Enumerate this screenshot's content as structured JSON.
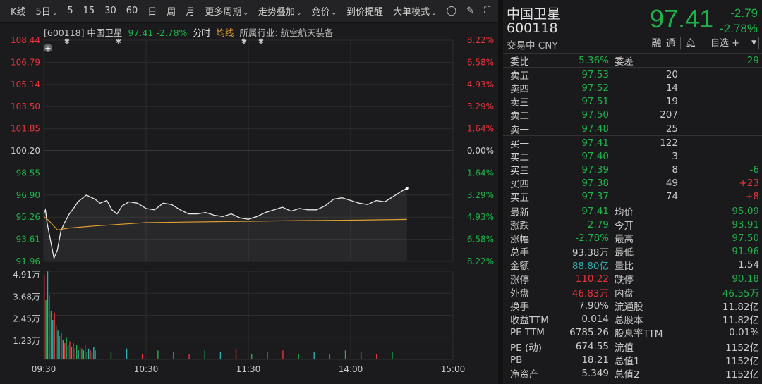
{
  "toolbar": {
    "items": [
      "K线",
      "5日",
      "5",
      "15",
      "30",
      "60",
      "日",
      "周",
      "月",
      "更多周期",
      "走势叠加",
      "竞价",
      "到价提醒",
      "大单模式"
    ],
    "dropdowns": [
      1,
      9,
      10,
      11,
      13
    ],
    "icons": [
      "circle-chevron-down-icon",
      "brush-icon",
      "fullscreen-icon"
    ]
  },
  "info": {
    "code": "[600118]",
    "name": "中国卫星",
    "price": "97.41",
    "pct": "-2.78%",
    "mode": "分时",
    "avg": "均线",
    "industry": "所属行业: 航空航天装备"
  },
  "colors": {
    "up": "#e8323c",
    "down": "#1fb24a",
    "avg": "#e0a030",
    "line": "#e8e8e8",
    "vol_teal": "#2bb0b0"
  },
  "chart_data": {
    "type": "line",
    "price_ticks": [
      "108.44",
      "106.79",
      "105.14",
      "103.50",
      "101.85",
      "100.20",
      "98.55",
      "96.90",
      "95.26",
      "93.61",
      "91.96"
    ],
    "pct_ticks": [
      "8.22%",
      "6.58%",
      "4.93%",
      "3.29%",
      "1.64%",
      "0.00%",
      "1.64%",
      "3.29%",
      "4.93%",
      "6.58%",
      "8.22%"
    ],
    "ylim": [
      91.96,
      108.44
    ],
    "prev_close": 100.2,
    "time_ticks": [
      "09:30",
      "10:30",
      "11:30",
      "14:00",
      "15:00"
    ],
    "vol_ticks": [
      "4.91万",
      "3.68万",
      "2.45万",
      "1.23万"
    ],
    "vol_max": 4.91,
    "price": [
      [
        "09:30",
        95.5
      ],
      [
        "09:31",
        95.8
      ],
      [
        "09:32",
        94.8
      ],
      [
        "09:34",
        93.5
      ],
      [
        "09:36",
        92.2
      ],
      [
        "09:38",
        92.8
      ],
      [
        "09:40",
        94.2
      ],
      [
        "09:42",
        94.8
      ],
      [
        "09:45",
        95.5
      ],
      [
        "09:48",
        96.0
      ],
      [
        "09:50",
        96.4
      ],
      [
        "09:55",
        96.9
      ],
      [
        "10:00",
        96.6
      ],
      [
        "10:03",
        96.3
      ],
      [
        "10:07",
        96.5
      ],
      [
        "10:10",
        95.8
      ],
      [
        "10:13",
        95.5
      ],
      [
        "10:16",
        96.1
      ],
      [
        "10:20",
        96.4
      ],
      [
        "10:25",
        96.3
      ],
      [
        "10:30",
        95.9
      ],
      [
        "10:35",
        95.8
      ],
      [
        "10:40",
        96.3
      ],
      [
        "10:45",
        96.2
      ],
      [
        "10:50",
        95.8
      ],
      [
        "10:55",
        95.5
      ],
      [
        "11:00",
        95.5
      ],
      [
        "11:05",
        95.6
      ],
      [
        "11:10",
        95.4
      ],
      [
        "11:15",
        95.3
      ],
      [
        "11:20",
        95.5
      ],
      [
        "11:25",
        95.2
      ],
      [
        "11:30",
        95.1
      ],
      [
        "13:05",
        95.3
      ],
      [
        "13:10",
        95.6
      ],
      [
        "13:15",
        95.8
      ],
      [
        "13:20",
        96.0
      ],
      [
        "13:25",
        95.7
      ],
      [
        "13:30",
        95.9
      ],
      [
        "13:35",
        95.8
      ],
      [
        "13:40",
        95.8
      ],
      [
        "13:45",
        96.1
      ],
      [
        "13:50",
        96.6
      ],
      [
        "13:55",
        96.7
      ],
      [
        "14:00",
        96.5
      ],
      [
        "14:05",
        96.3
      ],
      [
        "14:10",
        96.2
      ],
      [
        "14:15",
        96.5
      ],
      [
        "14:20",
        96.4
      ],
      [
        "14:25",
        96.8
      ],
      [
        "14:30",
        97.2
      ],
      [
        "14:33",
        97.41
      ]
    ],
    "avg": [
      [
        "09:30",
        95.3
      ],
      [
        "09:33",
        95.0
      ],
      [
        "09:38",
        94.3
      ],
      [
        "09:45",
        94.45
      ],
      [
        "10:00",
        94.6
      ],
      [
        "10:30",
        94.85
      ],
      [
        "11:30",
        94.95
      ],
      [
        "13:30",
        95.0
      ],
      [
        "14:00",
        95.03
      ],
      [
        "14:33",
        95.09
      ]
    ],
    "volume": [
      4.7,
      3.3,
      4.9,
      3.6,
      2.7,
      2.2,
      2.6,
      1.9,
      1.6,
      1.3,
      1.5,
      1.1,
      0.9,
      1.2,
      0.8,
      1.0,
      0.7,
      0.9,
      0.6,
      0.8,
      0.5,
      0.7,
      0.6,
      0.5,
      0.8,
      0.4,
      0.6,
      0.5,
      0.4,
      0.7,
      0.5,
      0.4,
      0.6,
      0.3,
      0.5,
      0.4,
      0.3,
      0.5,
      0.4,
      0.6,
      0.3,
      0.4,
      0.5,
      0.3,
      0.4,
      0.3,
      0.5,
      0.4,
      0.3,
      0.4
    ]
  },
  "quote": {
    "name": "中国卫星",
    "code": "600118",
    "status": "交易中 CNY",
    "price": "97.41",
    "change": "-2.79",
    "pct": "-2.78%",
    "rong": "融",
    "tong": "通",
    "watch": "自选 +"
  },
  "book": {
    "wb_label": "委比",
    "wb": "-5.36%",
    "wc_label": "委差",
    "wc": "-29",
    "asks": [
      {
        "l": "卖五",
        "p": "97.53",
        "v": "20",
        "d": ""
      },
      {
        "l": "卖四",
        "p": "97.52",
        "v": "14",
        "d": ""
      },
      {
        "l": "卖三",
        "p": "97.51",
        "v": "19",
        "d": ""
      },
      {
        "l": "卖二",
        "p": "97.50",
        "v": "207",
        "d": ""
      },
      {
        "l": "卖一",
        "p": "97.48",
        "v": "25",
        "d": ""
      }
    ],
    "bids": [
      {
        "l": "买一",
        "p": "97.41",
        "v": "122",
        "d": ""
      },
      {
        "l": "买二",
        "p": "97.40",
        "v": "3",
        "d": ""
      },
      {
        "l": "买三",
        "p": "97.39",
        "v": "8",
        "d": "-6"
      },
      {
        "l": "买四",
        "p": "97.38",
        "v": "49",
        "d": "+23"
      },
      {
        "l": "买五",
        "p": "97.37",
        "v": "74",
        "d": "+8"
      }
    ]
  },
  "stats": [
    {
      "l": "最新",
      "v": "97.41",
      "c": "g",
      "l2": "均价",
      "v2": "95.09",
      "c2": "g"
    },
    {
      "l": "涨跌",
      "v": "-2.79",
      "c": "g",
      "l2": "今开",
      "v2": "93.91",
      "c2": "g"
    },
    {
      "l": "涨幅",
      "v": "-2.78%",
      "c": "g",
      "l2": "最高",
      "v2": "97.50",
      "c2": "g"
    },
    {
      "l": "总手",
      "v": "93.38万",
      "c": "w",
      "l2": "最低",
      "v2": "91.96",
      "c2": "g"
    },
    {
      "l": "金额",
      "v": "88.80亿",
      "c": "c",
      "l2": "量比",
      "v2": "1.54",
      "c2": "w"
    },
    {
      "l": "涨停",
      "v": "110.22",
      "c": "r",
      "l2": "跌停",
      "v2": "90.18",
      "c2": "g"
    },
    {
      "l": "外盘",
      "v": "46.83万",
      "c": "r",
      "l2": "内盘",
      "v2": "46.55万",
      "c2": "g"
    },
    {
      "l": "换手",
      "v": "7.90%",
      "c": "w",
      "l2": "流通股",
      "v2": "11.82亿",
      "c2": "w"
    },
    {
      "l": "收益TTM",
      "v": "0.014",
      "c": "w",
      "l2": "总股本",
      "v2": "11.82亿",
      "c2": "w"
    },
    {
      "l": "PE TTM",
      "v": "6785.26",
      "c": "w",
      "l2": "股息率TTM",
      "v2": "0.01%",
      "c2": "w"
    },
    {
      "l": "PE (动)",
      "v": "-674.55",
      "c": "w",
      "l2": "流值",
      "v2": "1152亿",
      "c2": "w"
    },
    {
      "l": "PB",
      "v": "18.21",
      "c": "w",
      "l2": "总值1",
      "v2": "1152亿",
      "c2": "w"
    },
    {
      "l": "净资产",
      "v": "5.349",
      "c": "w",
      "l2": "总值2",
      "v2": "1152亿",
      "c2": "w"
    }
  ]
}
